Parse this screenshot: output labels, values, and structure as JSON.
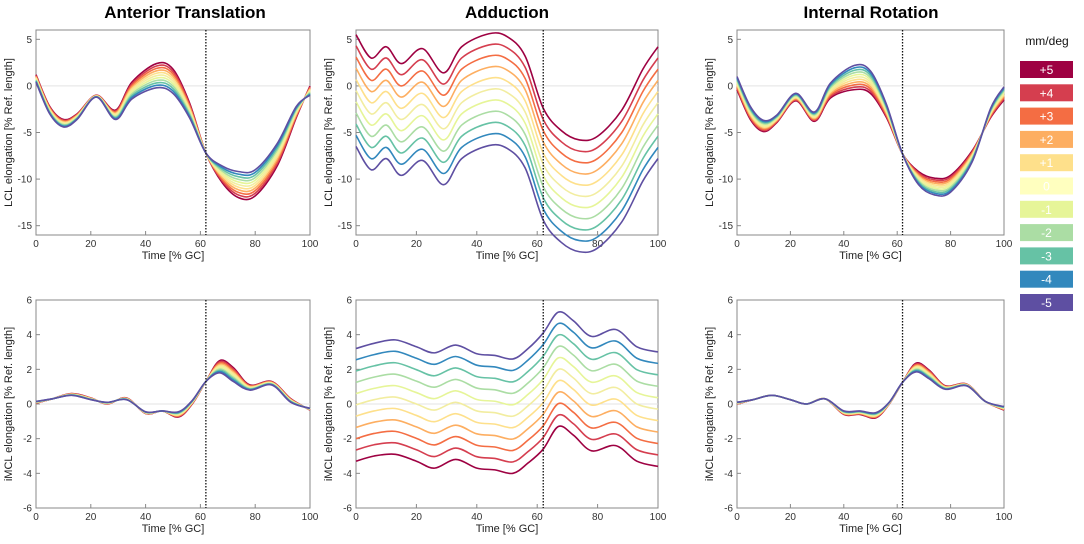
{
  "figure": {
    "column_titles": [
      "Anterior Translation",
      "Adduction",
      "Internal Rotation"
    ]
  },
  "legend": {
    "title": "mm/deg",
    "entries": [
      {
        "label": "+5",
        "color": "#9e0142"
      },
      {
        "label": "+4",
        "color": "#d53e4f"
      },
      {
        "label": "+3",
        "color": "#f46d43"
      },
      {
        "label": "+2",
        "color": "#fdae61"
      },
      {
        "label": "+1",
        "color": "#fee08b"
      },
      {
        "label": "0",
        "color": "#ffffbf"
      },
      {
        "label": "-1",
        "color": "#e6f598"
      },
      {
        "label": "-2",
        "color": "#abdda4"
      },
      {
        "label": "-3",
        "color": "#66c2a5"
      },
      {
        "label": "-4",
        "color": "#3288bd"
      },
      {
        "label": "-5",
        "color": "#5e4fa2"
      }
    ]
  },
  "chart_data": [
    {
      "type": "line",
      "row": 0,
      "col": 0,
      "title": "Anterior Translation",
      "xlabel": "Time [% GC]",
      "ylabel": "LCL elongation [% Ref. length]",
      "xlim": [
        0,
        100
      ],
      "ylim": [
        -16,
        6
      ],
      "xticks": [
        0,
        20,
        40,
        60,
        80,
        100
      ],
      "yticks": [
        -15,
        -10,
        -5,
        0,
        5
      ],
      "vline_x": 62,
      "x": [
        0,
        5,
        10,
        15,
        22,
        29,
        35,
        44,
        50,
        56,
        62,
        68,
        74,
        80,
        88,
        95,
        100
      ],
      "series": [
        {
          "name": "+5",
          "values": [
            1.2,
            -2.2,
            -3.6,
            -3.0,
            -1.0,
            -2.6,
            0.4,
            2.4,
            1.8,
            -1.8,
            -7.2,
            -10.4,
            -12.0,
            -11.8,
            -8.6,
            -3.4,
            0.0
          ]
        },
        {
          "name": "0",
          "values": [
            0.8,
            -2.6,
            -4.0,
            -3.3,
            -1.1,
            -3.1,
            -0.5,
            1.1,
            0.5,
            -2.6,
            -7.2,
            -9.5,
            -10.6,
            -10.4,
            -7.4,
            -2.8,
            -0.5
          ]
        },
        {
          "name": "-5",
          "values": [
            0.4,
            -3.0,
            -4.4,
            -3.6,
            -1.2,
            -3.6,
            -1.4,
            -0.2,
            -0.8,
            -3.4,
            -7.2,
            -8.6,
            -9.2,
            -9.0,
            -6.2,
            -2.2,
            -1.0
          ]
        }
      ]
    },
    {
      "type": "line",
      "row": 0,
      "col": 1,
      "title": "Adduction",
      "xlabel": "Time [% GC]",
      "ylabel": "LCL elongation [% Ref. length]",
      "xlim": [
        0,
        100
      ],
      "ylim": [
        -16,
        6
      ],
      "xticks": [
        0,
        20,
        40,
        60,
        80,
        100
      ],
      "yticks": [
        -15,
        -10,
        -5,
        0,
        5
      ],
      "vline_x": 62,
      "x": [
        0,
        5,
        10,
        15,
        22,
        29,
        35,
        44,
        50,
        56,
        62,
        68,
        74,
        80,
        88,
        95,
        100
      ],
      "series": [
        {
          "name": "+5",
          "values": [
            5.5,
            3.0,
            4.2,
            2.4,
            4.0,
            1.4,
            4.2,
            5.6,
            5.3,
            3.2,
            -2.4,
            -4.8,
            -5.8,
            -5.4,
            -2.6,
            1.8,
            4.2
          ]
        },
        {
          "name": "0",
          "values": [
            -0.5,
            -3.0,
            -1.8,
            -3.6,
            -2.0,
            -4.6,
            -1.8,
            -0.4,
            -0.7,
            -2.8,
            -8.4,
            -10.8,
            -11.8,
            -11.4,
            -8.6,
            -4.2,
            -1.8
          ]
        },
        {
          "name": "-5",
          "values": [
            -6.5,
            -9.0,
            -7.8,
            -9.6,
            -8.0,
            -10.6,
            -7.8,
            -6.4,
            -6.7,
            -8.8,
            -14.4,
            -16.8,
            -17.8,
            -17.4,
            -14.6,
            -10.2,
            -7.8
          ]
        }
      ]
    },
    {
      "type": "line",
      "row": 0,
      "col": 2,
      "title": "Internal Rotation",
      "xlabel": "Time [% GC]",
      "ylabel": "LCL elongation [% Ref. length]",
      "xlim": [
        0,
        100
      ],
      "ylim": [
        -16,
        6
      ],
      "xticks": [
        0,
        20,
        40,
        60,
        80,
        100
      ],
      "yticks": [
        -15,
        -10,
        -5,
        0,
        5
      ],
      "vline_x": 62,
      "x": [
        0,
        5,
        10,
        15,
        22,
        29,
        35,
        44,
        50,
        56,
        62,
        68,
        74,
        80,
        88,
        95,
        100
      ],
      "series": [
        {
          "name": "+5",
          "values": [
            -0.4,
            -3.6,
            -4.9,
            -3.9,
            -1.6,
            -3.8,
            -1.3,
            -0.4,
            -0.8,
            -3.4,
            -7.3,
            -9.2,
            -9.9,
            -9.6,
            -7.0,
            -3.4,
            -1.5
          ]
        },
        {
          "name": "0",
          "values": [
            0.3,
            -2.9,
            -4.3,
            -3.5,
            -1.2,
            -3.3,
            -0.5,
            0.9,
            0.4,
            -2.7,
            -7.3,
            -9.9,
            -10.8,
            -10.5,
            -7.6,
            -2.9,
            -0.8
          ]
        },
        {
          "name": "-5",
          "values": [
            1.0,
            -2.2,
            -3.7,
            -3.1,
            -0.8,
            -2.8,
            0.3,
            2.2,
            1.6,
            -2.0,
            -7.3,
            -10.6,
            -11.7,
            -11.4,
            -8.2,
            -2.4,
            -0.1
          ]
        }
      ]
    },
    {
      "type": "line",
      "row": 1,
      "col": 0,
      "title": "",
      "xlabel": "Time [% GC]",
      "ylabel": "iMCL elongation [% Ref. length]",
      "xlim": [
        0,
        100
      ],
      "ylim": [
        -6,
        6
      ],
      "xticks": [
        0,
        20,
        40,
        60,
        80,
        100
      ],
      "yticks": [
        -6,
        -4,
        -2,
        0,
        2,
        4,
        6
      ],
      "vline_x": 62,
      "x": [
        0,
        6,
        13,
        20,
        26,
        33,
        40,
        46,
        52,
        57,
        62,
        67,
        72,
        78,
        86,
        93,
        100
      ],
      "series": [
        {
          "name": "+5",
          "values": [
            0.05,
            0.3,
            0.6,
            0.35,
            0.0,
            0.35,
            -0.55,
            -0.4,
            -0.75,
            0.0,
            1.3,
            2.5,
            2.1,
            1.1,
            1.3,
            0.3,
            -0.35
          ]
        },
        {
          "name": "0",
          "values": [
            0.1,
            0.3,
            0.55,
            0.3,
            0.05,
            0.3,
            -0.5,
            -0.4,
            -0.6,
            0.1,
            1.3,
            2.15,
            1.7,
            0.95,
            1.2,
            0.2,
            -0.3
          ]
        },
        {
          "name": "-5",
          "values": [
            0.15,
            0.3,
            0.5,
            0.25,
            0.1,
            0.25,
            -0.45,
            -0.4,
            -0.45,
            0.2,
            1.3,
            1.8,
            1.3,
            0.8,
            1.1,
            0.1,
            -0.25
          ]
        }
      ]
    },
    {
      "type": "line",
      "row": 1,
      "col": 1,
      "title": "",
      "xlabel": "Time [% GC]",
      "ylabel": "iMCL elongation [% Ref. length]",
      "xlim": [
        0,
        100
      ],
      "ylim": [
        -6,
        6
      ],
      "xticks": [
        0,
        20,
        40,
        60,
        80,
        100
      ],
      "yticks": [
        -6,
        -4,
        -2,
        0,
        2,
        4,
        6
      ],
      "vline_x": 62,
      "x": [
        0,
        6,
        13,
        20,
        26,
        33,
        40,
        46,
        52,
        57,
        62,
        67,
        72,
        78,
        86,
        93,
        100
      ],
      "series": [
        {
          "name": "+5",
          "values": [
            -3.3,
            -3.0,
            -2.9,
            -3.3,
            -3.7,
            -3.2,
            -3.7,
            -3.8,
            -4.0,
            -3.4,
            -2.6,
            -1.3,
            -1.8,
            -2.7,
            -2.4,
            -3.3,
            -3.6
          ]
        },
        {
          "name": "0",
          "values": [
            -0.05,
            0.25,
            0.4,
            0.0,
            -0.35,
            0.1,
            -0.4,
            -0.5,
            -0.7,
            -0.1,
            0.75,
            2.0,
            1.5,
            0.6,
            0.95,
            0.0,
            -0.3
          ]
        },
        {
          "name": "-5",
          "values": [
            3.2,
            3.5,
            3.7,
            3.3,
            2.95,
            3.4,
            2.9,
            2.8,
            2.6,
            3.2,
            4.1,
            5.3,
            4.8,
            3.9,
            4.3,
            3.3,
            3.0
          ]
        }
      ]
    },
    {
      "type": "line",
      "row": 1,
      "col": 2,
      "title": "",
      "xlabel": "Time [% GC]",
      "ylabel": "iMCL elongation [% Ref. length]",
      "xlim": [
        0,
        100
      ],
      "ylim": [
        -6,
        6
      ],
      "xticks": [
        0,
        20,
        40,
        60,
        80,
        100
      ],
      "yticks": [
        -6,
        -4,
        -2,
        0,
        2,
        4,
        6
      ],
      "vline_x": 62,
      "x": [
        0,
        6,
        13,
        20,
        26,
        33,
        40,
        46,
        52,
        57,
        62,
        67,
        72,
        78,
        86,
        93,
        100
      ],
      "series": [
        {
          "name": "+5",
          "values": [
            0.0,
            0.25,
            0.5,
            0.25,
            0.0,
            0.3,
            -0.6,
            -0.6,
            -0.8,
            0.0,
            1.25,
            2.35,
            1.95,
            1.05,
            1.15,
            0.15,
            -0.35
          ]
        },
        {
          "name": "0",
          "values": [
            0.05,
            0.25,
            0.5,
            0.25,
            0.0,
            0.3,
            -0.5,
            -0.5,
            -0.65,
            0.05,
            1.25,
            2.1,
            1.7,
            0.95,
            1.1,
            0.15,
            -0.25
          ]
        },
        {
          "name": "-5",
          "values": [
            0.1,
            0.25,
            0.5,
            0.25,
            0.0,
            0.3,
            -0.4,
            -0.4,
            -0.5,
            0.1,
            1.25,
            1.85,
            1.45,
            0.85,
            1.05,
            0.15,
            -0.15
          ]
        }
      ]
    }
  ]
}
